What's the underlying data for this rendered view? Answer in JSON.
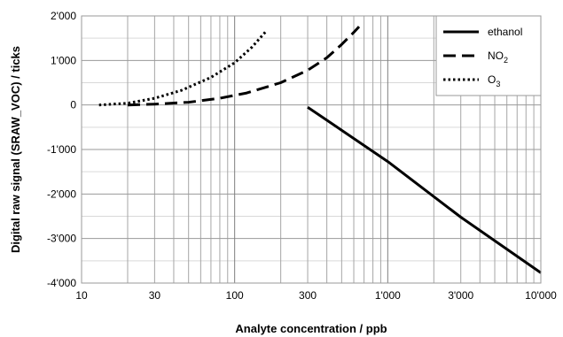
{
  "chart_data": {
    "type": "line",
    "title": "",
    "xlabel": "Analyte concentration / ppb",
    "ylabel": "Digital raw signal (SRAW_VOC) / ticks",
    "x_scale": "log",
    "xlim": [
      10,
      10000
    ],
    "ylim": [
      -4000,
      2000
    ],
    "x_ticks": [
      10,
      30,
      100,
      300,
      1000,
      3000,
      10000
    ],
    "x_tick_labels": [
      "10",
      "30",
      "100",
      "300",
      "1'000",
      "3'000",
      "10'000"
    ],
    "y_ticks": [
      2000,
      1000,
      0,
      -1000,
      -2000,
      -3000,
      -4000
    ],
    "y_tick_labels": [
      "2'000",
      "1'000",
      "0",
      "-1'000",
      "-2'000",
      "-3'000",
      "-4'000"
    ],
    "grid": true,
    "legend_position": "top-right",
    "series": [
      {
        "name": "ethanol",
        "style": "solid",
        "x": [
          300,
          1000,
          3000,
          10000
        ],
        "y": [
          -50,
          -1270,
          -2520,
          -3770
        ]
      },
      {
        "name": "NO2",
        "name_base": "NO",
        "name_sub": "2",
        "style": "dashed",
        "x": [
          20,
          30,
          50,
          80,
          120,
          200,
          300,
          400,
          500,
          600,
          650
        ],
        "y": [
          0,
          20,
          60,
          150,
          270,
          500,
          780,
          1060,
          1360,
          1630,
          1760
        ]
      },
      {
        "name": "O3",
        "name_base": "O",
        "name_sub": "3",
        "style": "dotted",
        "x": [
          13,
          20,
          30,
          45,
          70,
          100,
          130,
          160
        ],
        "y": [
          0,
          40,
          150,
          330,
          620,
          950,
          1300,
          1650
        ]
      }
    ]
  }
}
